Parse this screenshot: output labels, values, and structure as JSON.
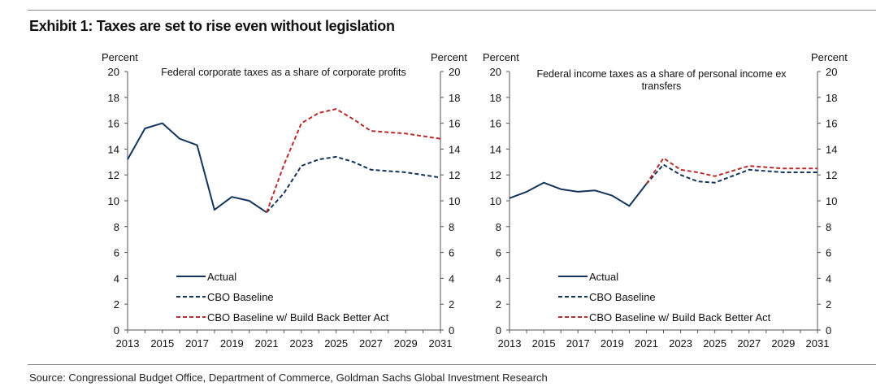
{
  "exhibit_title": "Exhibit 1: Taxes are set to rise even without legislation",
  "source": "Source: Congressional Budget Office, Department of Commerce, Goldman Sachs Global Investment Research",
  "colors": {
    "actual": "#14345c",
    "cbo_baseline": "#14345c",
    "bbb": "#b72d2d",
    "axis": "#555555",
    "rule": "#8c8c8c"
  },
  "chart_data": [
    {
      "type": "line",
      "title": "Federal corporate taxes as a share of corporate profits",
      "title_lines": [
        "Federal corporate taxes as a share of corporate profits"
      ],
      "ylabel_left": "Percent",
      "ylabel_right": "Percent",
      "xlim": [
        2013,
        2031
      ],
      "ylim": [
        0,
        20
      ],
      "x_ticks": [
        2013,
        2015,
        2017,
        2019,
        2021,
        2023,
        2025,
        2027,
        2029,
        2031
      ],
      "y_ticks": [
        0,
        2,
        4,
        6,
        8,
        10,
        12,
        14,
        16,
        18,
        20
      ],
      "grid": false,
      "legend_position": "bottom-left",
      "series": [
        {
          "name": "Actual",
          "style": "solid",
          "color": "#14345c",
          "x": [
            2013,
            2014,
            2015,
            2016,
            2017,
            2018,
            2019,
            2020,
            2021
          ],
          "y": [
            13.2,
            15.6,
            16.0,
            14.8,
            14.3,
            9.3,
            10.3,
            10.0,
            9.1
          ]
        },
        {
          "name": "CBO Baseline",
          "style": "dashed",
          "color": "#14345c",
          "x": [
            2021,
            2022,
            2023,
            2024,
            2025,
            2026,
            2027,
            2028,
            2029,
            2030,
            2031
          ],
          "y": [
            9.1,
            10.6,
            12.7,
            13.2,
            13.4,
            13.0,
            12.4,
            12.3,
            12.2,
            12.0,
            11.8
          ]
        },
        {
          "name": "CBO Baseline w/ Build Back Better Act",
          "style": "dashed",
          "color": "#b72d2d",
          "x": [
            2021,
            2022,
            2023,
            2024,
            2025,
            2026,
            2027,
            2028,
            2029,
            2030,
            2031
          ],
          "y": [
            9.1,
            12.8,
            16.0,
            16.8,
            17.1,
            16.3,
            15.4,
            15.3,
            15.2,
            15.0,
            14.8
          ]
        }
      ]
    },
    {
      "type": "line",
      "title": "Federal income taxes as a share of personal income ex transfers",
      "title_lines": [
        "Federal income taxes as a share of personal income ex",
        "transfers"
      ],
      "ylabel_left": "Percent",
      "ylabel_right": "Percent",
      "xlim": [
        2013,
        2031
      ],
      "ylim": [
        0,
        20
      ],
      "x_ticks": [
        2013,
        2015,
        2017,
        2019,
        2021,
        2023,
        2025,
        2027,
        2029,
        2031
      ],
      "y_ticks": [
        0,
        2,
        4,
        6,
        8,
        10,
        12,
        14,
        16,
        18,
        20
      ],
      "grid": false,
      "legend_position": "bottom-left",
      "series": [
        {
          "name": "Actual",
          "style": "solid",
          "color": "#14345c",
          "x": [
            2013,
            2014,
            2015,
            2016,
            2017,
            2018,
            2019,
            2020,
            2021
          ],
          "y": [
            10.2,
            10.7,
            11.4,
            10.9,
            10.7,
            10.8,
            10.4,
            9.6,
            11.3
          ]
        },
        {
          "name": "CBO Baseline",
          "style": "dashed",
          "color": "#14345c",
          "x": [
            2021,
            2022,
            2023,
            2024,
            2025,
            2026,
            2027,
            2028,
            2029,
            2030,
            2031
          ],
          "y": [
            11.3,
            12.8,
            12.0,
            11.5,
            11.4,
            11.9,
            12.4,
            12.3,
            12.2,
            12.2,
            12.2
          ]
        },
        {
          "name": "CBO Baseline w/ Build Back Better Act",
          "style": "dashed",
          "color": "#b72d2d",
          "x": [
            2021,
            2022,
            2023,
            2024,
            2025,
            2026,
            2027,
            2028,
            2029,
            2030,
            2031
          ],
          "y": [
            11.3,
            13.3,
            12.4,
            12.2,
            11.9,
            12.3,
            12.7,
            12.6,
            12.5,
            12.5,
            12.5
          ]
        }
      ]
    }
  ]
}
